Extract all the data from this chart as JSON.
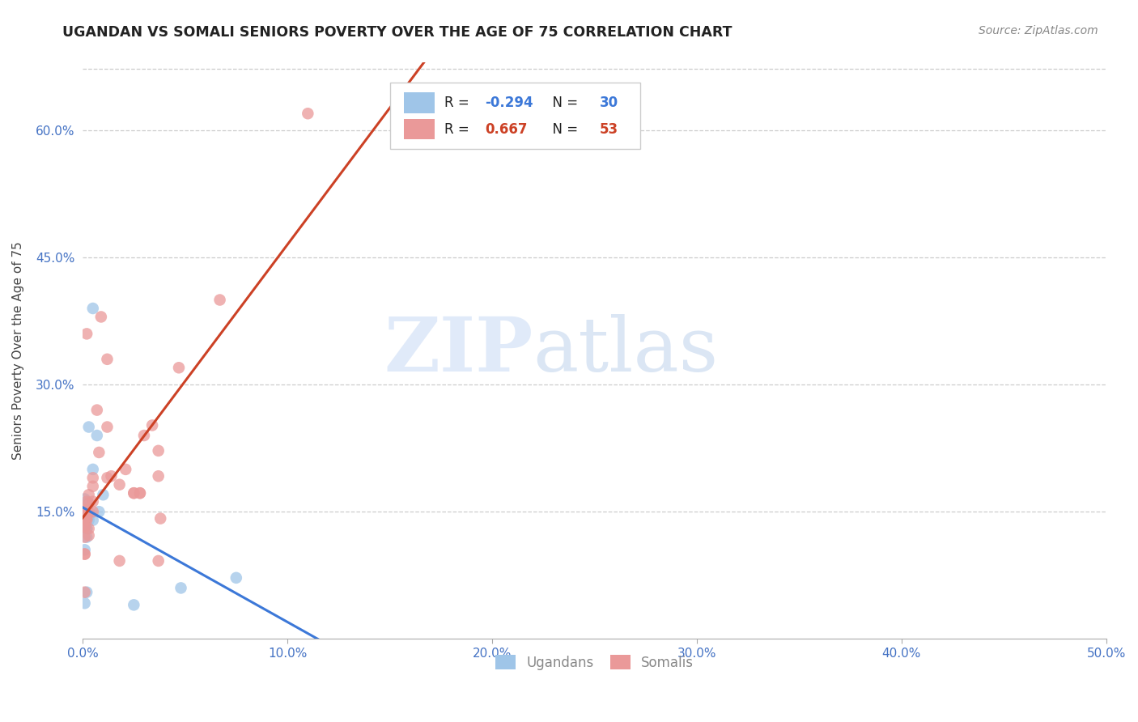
{
  "title": "UGANDAN VS SOMALI SENIORS POVERTY OVER THE AGE OF 75 CORRELATION CHART",
  "source": "Source: ZipAtlas.com",
  "tick_color": "#4472c4",
  "ylabel": "Seniors Poverty Over the Age of 75",
  "xlim": [
    0.0,
    0.5
  ],
  "ylim": [
    0.0,
    0.68
  ],
  "xticks": [
    0.0,
    0.1,
    0.2,
    0.3,
    0.4,
    0.5
  ],
  "ytick_vals": [
    0.15,
    0.3,
    0.45,
    0.6
  ],
  "ytick_labels": [
    "15.0%",
    "30.0%",
    "45.0%",
    "60.0%"
  ],
  "xtick_labels": [
    "0.0%",
    "10.0%",
    "20.0%",
    "30.0%",
    "40.0%",
    "50.0%"
  ],
  "ugandan_color": "#9fc5e8",
  "somali_color": "#ea9999",
  "ugandan_line_color": "#3c78d8",
  "somali_line_color": "#cc4125",
  "watermark_zip": "ZIP",
  "watermark_atlas": "atlas",
  "legend_r_ugandan": "-0.294",
  "legend_n_ugandan": "30",
  "legend_r_somali": "0.667",
  "legend_n_somali": "53",
  "ugandan_x": [
    0.005,
    0.003,
    0.001,
    0.001,
    0.002,
    0.001,
    0.001,
    0.002,
    0.003,
    0.002,
    0.001,
    0.001,
    0.001,
    0.002,
    0.003,
    0.005,
    0.008,
    0.01,
    0.003,
    0.002,
    0.001,
    0.005,
    0.025,
    0.001,
    0.007,
    0.048,
    0.001,
    0.002,
    0.001,
    0.075
  ],
  "ugandan_y": [
    0.39,
    0.25,
    0.165,
    0.145,
    0.155,
    0.145,
    0.135,
    0.13,
    0.145,
    0.12,
    0.145,
    0.14,
    0.15,
    0.16,
    0.16,
    0.2,
    0.15,
    0.17,
    0.14,
    0.055,
    0.042,
    0.14,
    0.04,
    0.105,
    0.24,
    0.06,
    0.142,
    0.13,
    0.132,
    0.072
  ],
  "somali_x": [
    0.002,
    0.009,
    0.002,
    0.002,
    0.001,
    0.001,
    0.002,
    0.001,
    0.002,
    0.003,
    0.005,
    0.003,
    0.002,
    0.003,
    0.005,
    0.007,
    0.003,
    0.005,
    0.002,
    0.005,
    0.012,
    0.008,
    0.012,
    0.012,
    0.014,
    0.018,
    0.001,
    0.002,
    0.002,
    0.025,
    0.037,
    0.021,
    0.025,
    0.028,
    0.028,
    0.03,
    0.034,
    0.037,
    0.001,
    0.001,
    0.001,
    0.001,
    0.001,
    0.001,
    0.067,
    0.038,
    0.047,
    0.001,
    0.001,
    0.037,
    0.003,
    0.018,
    0.11
  ],
  "somali_y": [
    0.36,
    0.38,
    0.145,
    0.14,
    0.142,
    0.12,
    0.15,
    0.15,
    0.152,
    0.13,
    0.15,
    0.15,
    0.152,
    0.16,
    0.19,
    0.27,
    0.17,
    0.18,
    0.15,
    0.162,
    0.25,
    0.22,
    0.33,
    0.19,
    0.192,
    0.182,
    0.15,
    0.162,
    0.142,
    0.172,
    0.192,
    0.2,
    0.172,
    0.172,
    0.172,
    0.24,
    0.252,
    0.222,
    0.142,
    0.132,
    0.142,
    0.1,
    0.055,
    0.1,
    0.4,
    0.142,
    0.32,
    0.142,
    0.132,
    0.092,
    0.122,
    0.092,
    0.62
  ]
}
